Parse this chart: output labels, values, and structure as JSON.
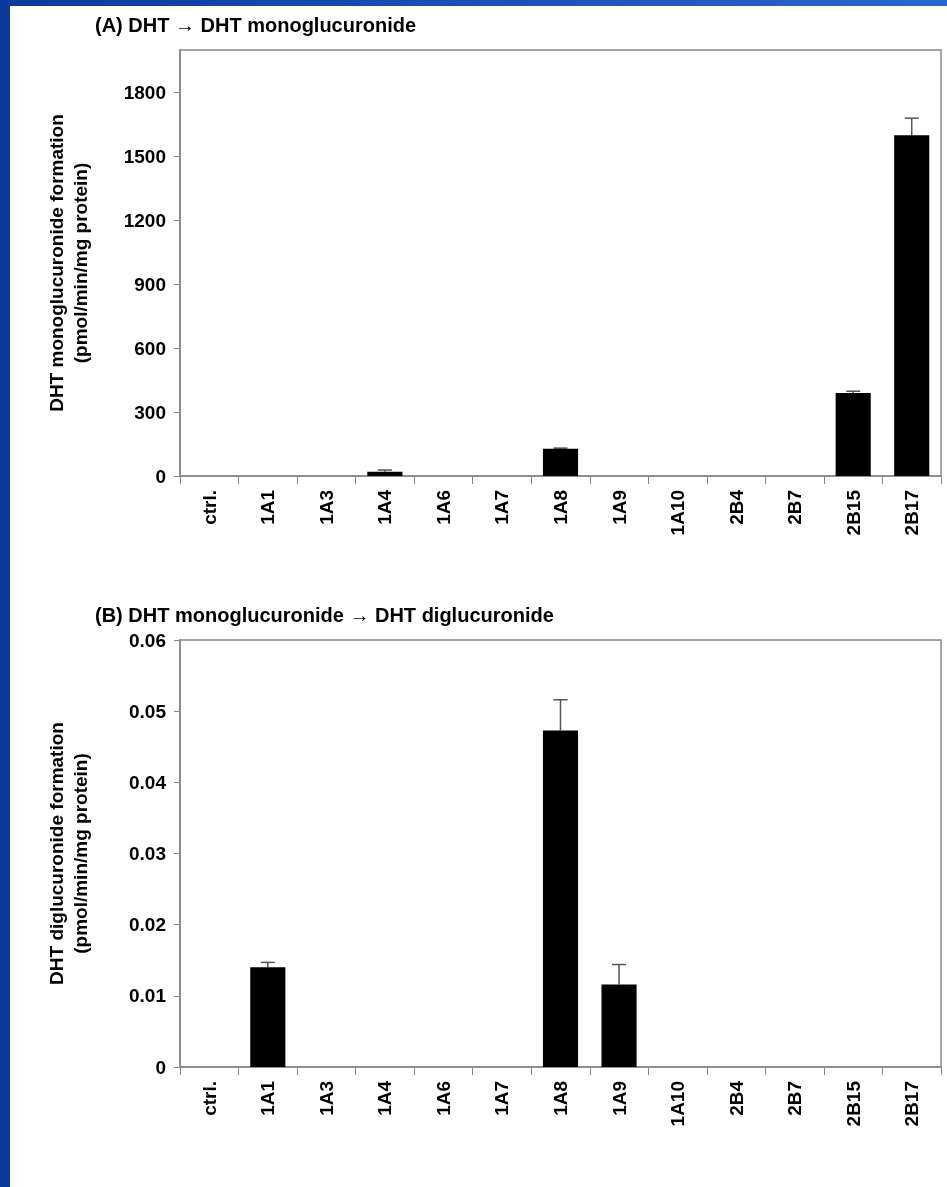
{
  "chart_data": [
    {
      "type": "bar",
      "title": "(A) DHT → DHT monoglucuronide",
      "ylabel": "DHT monoglucuronide formation\n(pmol/min/mg protein)",
      "categories": [
        "ctrl.",
        "1A1",
        "1A3",
        "1A4",
        "1A6",
        "1A7",
        "1A8",
        "1A9",
        "1A10",
        "2B4",
        "2B7",
        "2B15",
        "2B17"
      ],
      "values": [
        0,
        0,
        0,
        20,
        0,
        0,
        128,
        0,
        0,
        0,
        0,
        390,
        1600
      ],
      "errors": [
        null,
        null,
        null,
        8,
        null,
        null,
        3,
        null,
        null,
        null,
        null,
        8,
        80
      ],
      "color": "#000000",
      "ylim": [
        0,
        2000
      ],
      "yticks": [
        0,
        300,
        600,
        900,
        1200,
        1500,
        1800
      ],
      "grid": false
    },
    {
      "type": "bar",
      "title": "(B) DHT monoglucuronide → DHT diglucuronide",
      "ylabel": "DHT diglucuronide formation\n(pmol/min/mg protein)",
      "categories": [
        "ctrl.",
        "1A1",
        "1A3",
        "1A4",
        "1A6",
        "1A7",
        "1A8",
        "1A9",
        "1A10",
        "2B4",
        "2B7",
        "2B15",
        "2B17"
      ],
      "values": [
        0,
        0.014,
        0,
        0,
        0,
        0,
        0.0473,
        0.0116,
        0,
        0,
        0,
        0,
        0
      ],
      "errors": [
        null,
        0.0007,
        null,
        null,
        null,
        null,
        0.0043,
        0.0028,
        null,
        null,
        null,
        null,
        null
      ],
      "color": "#000000",
      "ylim": [
        0,
        0.06
      ],
      "yticks": [
        0,
        0.01,
        0.02,
        0.03,
        0.04,
        0.05,
        0.06
      ],
      "grid": false
    }
  ]
}
